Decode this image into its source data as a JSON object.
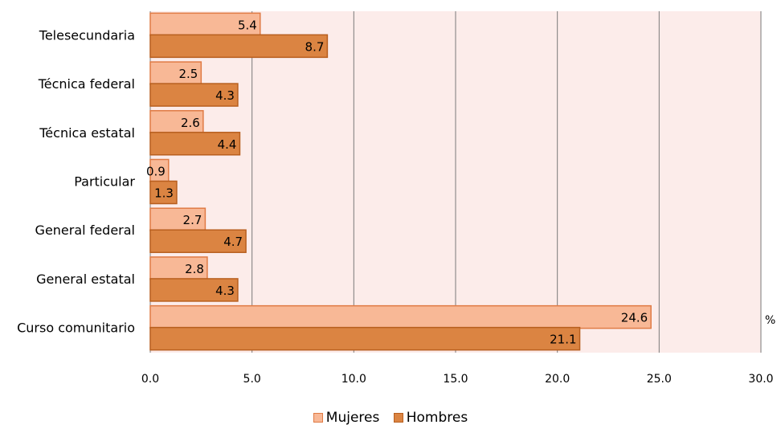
{
  "chart_data": {
    "type": "bar",
    "orientation": "horizontal",
    "categories": [
      "Telesecundaria",
      "Técnica federal",
      "Técnica estatal ",
      "Particular",
      "General federal",
      "General estatal",
      "Curso comunitario"
    ],
    "series": [
      {
        "name": "Mujeres",
        "values": [
          5.4,
          2.5,
          2.6,
          0.9,
          2.7,
          2.8,
          24.6
        ]
      },
      {
        "name": "Hombres",
        "values": [
          8.7,
          4.3,
          4.4,
          1.3,
          4.7,
          4.3,
          21.1
        ]
      }
    ],
    "xlim": [
      0,
      30
    ],
    "xticks": [
      "0.0",
      "5.0",
      "10.0",
      "15.0",
      "20.0",
      "25.0",
      "30.0"
    ],
    "unit_label": "%",
    "legend_position": "bottom",
    "grid": true
  },
  "colors": {
    "mujeres_fill": "#f8b896",
    "mujeres_border": "#e07b45",
    "hombres_fill": "#db8442",
    "hombres_border": "#b85f1f",
    "plot_bg": "#fcecea",
    "grid": "#7a7a7a"
  }
}
